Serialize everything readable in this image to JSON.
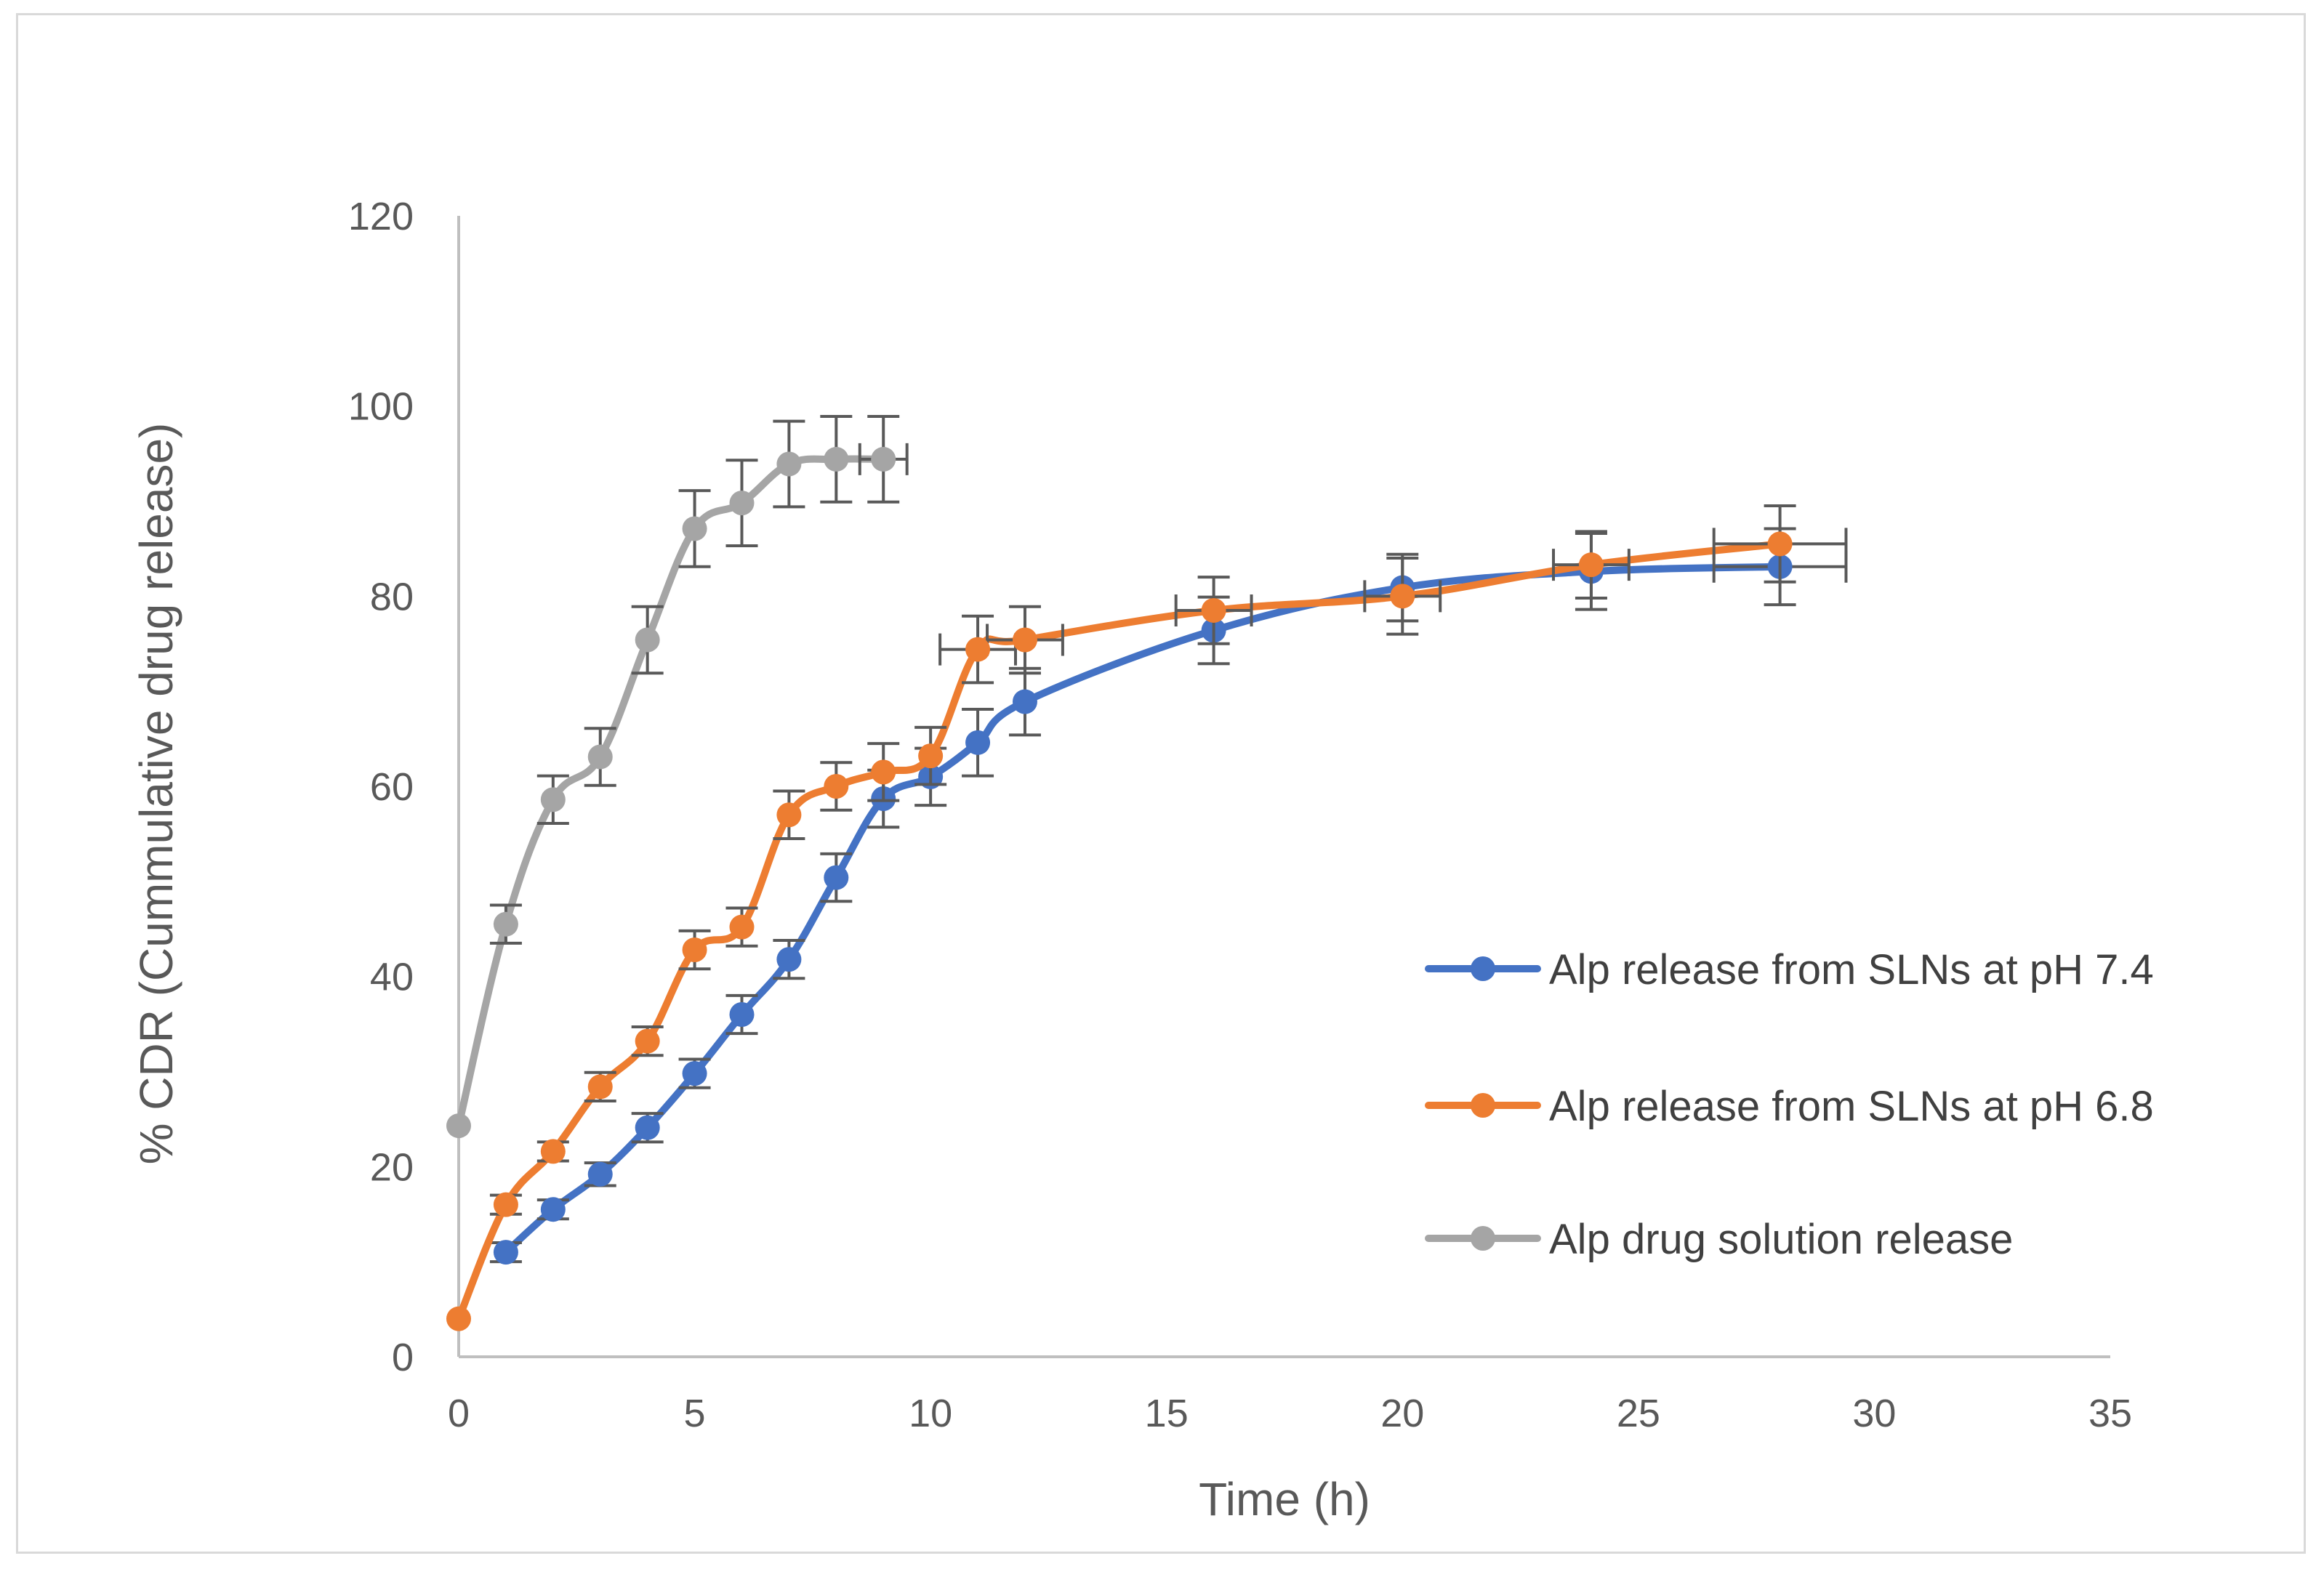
{
  "chart_data": {
    "type": "line",
    "title": "",
    "xlabel": "Time (h)",
    "ylabel": "% CDR (Cummulative drug release)",
    "xlim": [
      0,
      35
    ],
    "ylim": [
      0,
      120
    ],
    "x_ticks": [
      0,
      5,
      10,
      15,
      20,
      25,
      30,
      35
    ],
    "y_ticks": [
      0,
      20,
      40,
      60,
      80,
      100,
      120
    ],
    "grid": false,
    "legend_position": "right",
    "series": [
      {
        "name": "Alp release from SLNs at pH 7.4",
        "color": "#4472c4",
        "x": [
          1,
          2,
          3,
          4,
          5,
          6,
          7,
          8,
          9,
          10,
          11,
          12,
          16,
          20,
          24,
          28
        ],
        "y": [
          11,
          15.5,
          19.2,
          24.1,
          29.8,
          36,
          41.8,
          50.4,
          58.7,
          61,
          64.6,
          68.9,
          76.4,
          80.9,
          82.6,
          83.1
        ],
        "error": [
          1,
          1,
          1.2,
          1.5,
          1.5,
          2,
          2,
          2.5,
          3,
          3,
          3.5,
          3.5,
          3.5,
          3.5,
          4,
          4
        ],
        "x_error": [
          0,
          0,
          0,
          0,
          0,
          0,
          0,
          0,
          0,
          0,
          0,
          0,
          0,
          0,
          0,
          1.4
        ]
      },
      {
        "name": "Alp release from SLNs at pH 6.8",
        "color": "#ed7d31",
        "x": [
          0,
          1,
          2,
          3,
          4,
          5,
          6,
          7,
          8,
          9,
          10,
          11,
          12,
          16,
          20,
          24,
          28
        ],
        "y": [
          4,
          16,
          21.6,
          28.4,
          33.2,
          42.8,
          45.2,
          57,
          60,
          61.5,
          63.2,
          74.4,
          75.4,
          78.5,
          80,
          83.3,
          85.5
        ],
        "error": [
          0,
          1,
          1,
          1.5,
          1.5,
          2,
          2,
          2.5,
          2.5,
          3,
          3,
          3.5,
          3.5,
          3.5,
          4,
          3.5,
          4
        ],
        "x_error": [
          0,
          0,
          0,
          0,
          0,
          0,
          0,
          0,
          0,
          0,
          0,
          0.8,
          0.8,
          0.8,
          0.8,
          0.8,
          1.4
        ]
      },
      {
        "name": "Alp drug solution release",
        "color": "#a5a5a5",
        "x": [
          0,
          1,
          2,
          3,
          4,
          5,
          6,
          7,
          8,
          9
        ],
        "y": [
          24.3,
          45.5,
          58.6,
          63.1,
          75.4,
          87.1,
          89.8,
          93.9,
          94.4,
          94.4
        ],
        "error": [
          0,
          2,
          2.5,
          3,
          3.5,
          4,
          4.5,
          4.5,
          4.5,
          4.5
        ],
        "x_error": [
          0,
          0,
          0,
          0,
          0,
          0,
          0,
          0,
          0,
          0.5
        ]
      }
    ]
  }
}
